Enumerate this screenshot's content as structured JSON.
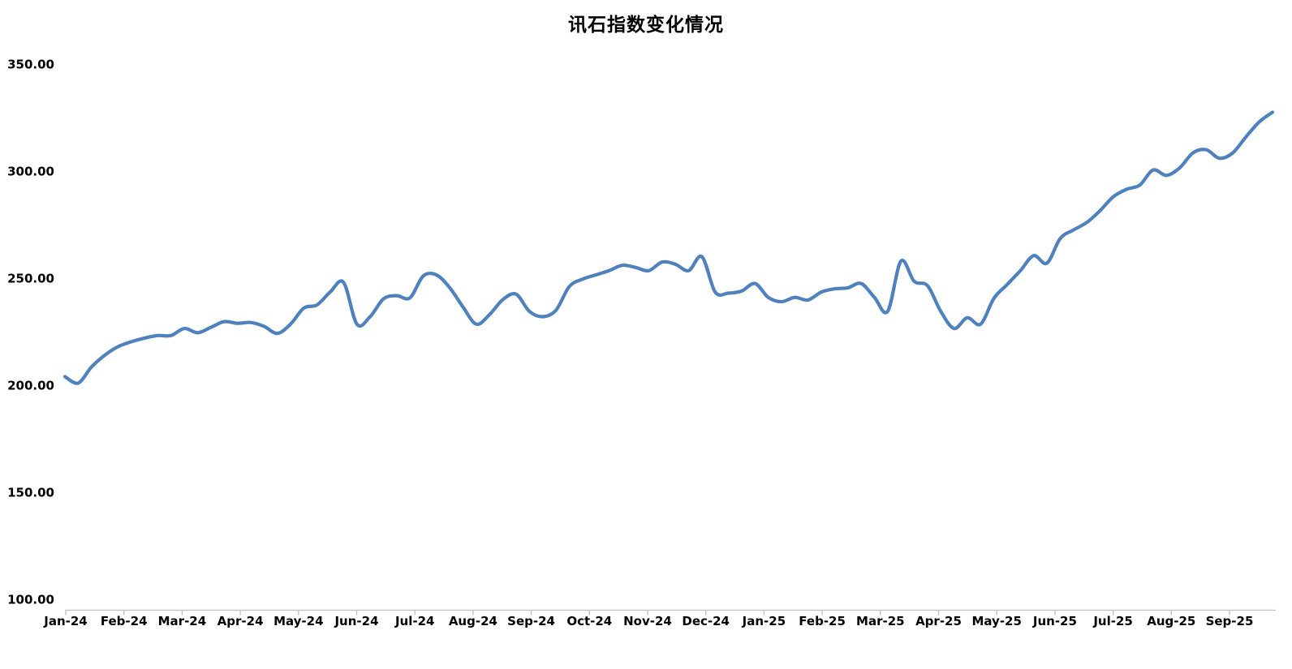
{
  "chart_data": {
    "type": "line",
    "title": "讯石指数变化情况",
    "smooth": true,
    "grid": false,
    "legend_position": "none",
    "line_color": "#4F81BD",
    "axis_color": "#BFBFBF",
    "text_color": "#000000",
    "background_color": "#FFFFFF",
    "y_axis": {
      "min": 100,
      "max": 350,
      "tick_interval": 50,
      "tick_labels": [
        "350.00",
        "300.00",
        "250.00",
        "200.00",
        "150.00",
        "100.00"
      ]
    },
    "x_axis": {
      "categories": [
        "Jan-24",
        "Feb-24",
        "Mar-24",
        "Apr-24",
        "May-24",
        "Jun-24",
        "Jul-24",
        "Aug-24",
        "Sep-24",
        "Oct-24",
        "Nov-24",
        "Dec-24",
        "Jan-25",
        "Feb-25",
        "Mar-25",
        "Apr-25",
        "May-25",
        "Jun-25",
        "Jul-25",
        "Aug-25",
        "Sep-25"
      ]
    },
    "series": [
      {
        "values": [
          204.0,
          201.0,
          208.5,
          214.0,
          218.0,
          220.3,
          222.0,
          223.2,
          223.2,
          226.5,
          224.5,
          227.0,
          229.7,
          228.9,
          229.3,
          227.5,
          224.2,
          228.5,
          236.0,
          237.5,
          243.6,
          248.0,
          228.5,
          232.0,
          240.3,
          241.8,
          240.8,
          251.0,
          251.5,
          245.5,
          236.5,
          228.5,
          233.0,
          240.0,
          242.5,
          234.5,
          232.0,
          235.0,
          246.0,
          249.5,
          251.5,
          253.5,
          256.0,
          255.0,
          253.5,
          257.5,
          256.5,
          253.5,
          260.0,
          243.5,
          243.0,
          244.0,
          247.5,
          241.0,
          239.0,
          241.0,
          239.8,
          243.5,
          245.0,
          245.5,
          247.5,
          241.0,
          234.5,
          258.0,
          248.5,
          246.5,
          234.5,
          226.5,
          231.5,
          228.5,
          240.5,
          247.0,
          253.5,
          260.5,
          257.0,
          268.5,
          272.5,
          276.0,
          281.5,
          288.0,
          291.5,
          293.5,
          300.5,
          298.0,
          301.5,
          308.5,
          310.0,
          306.0,
          308.5,
          316.0,
          323.0,
          327.5
        ]
      }
    ]
  }
}
